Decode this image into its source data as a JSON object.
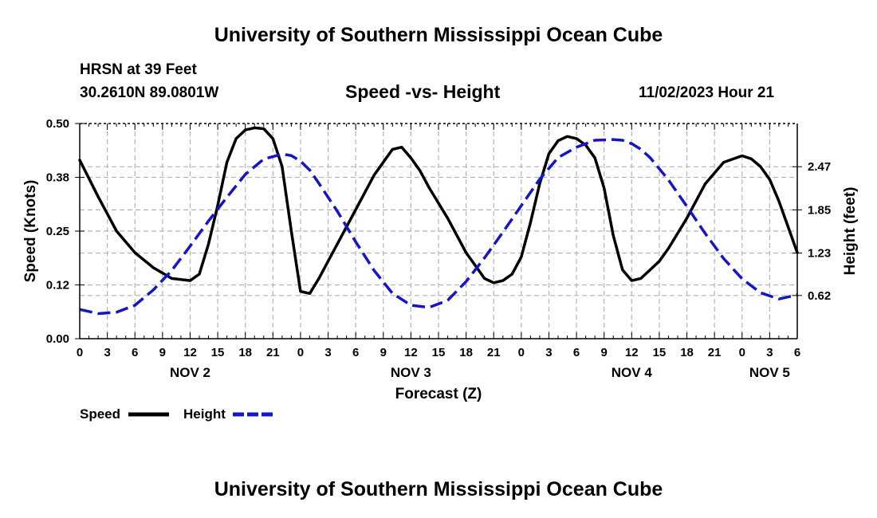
{
  "header": {
    "title": "University of Southern Mississippi Ocean Cube",
    "station": "HRSN at 39 Feet",
    "coords": "30.2610N  89.0801W",
    "subtitle": "Speed -vs- Height",
    "datetime": "11/02/2023 Hour 21"
  },
  "footer": {
    "title": "University of Southern Mississippi Ocean Cube"
  },
  "colors": {
    "speed": "#000000",
    "height": "#1414c8",
    "grid": "#b4b4b4"
  },
  "chart_data": {
    "type": "line",
    "xlabel": "Forecast (Z)",
    "ylabel_left": "Speed (Knots)",
    "ylabel_right": "Height (feet)",
    "x_range_hours": [
      0,
      78
    ],
    "x_major_step_hours": 3,
    "x_tick_labels": [
      "0",
      "3",
      "6",
      "9",
      "12",
      "15",
      "18",
      "21",
      "0",
      "3",
      "6",
      "9",
      "12",
      "15",
      "18",
      "21",
      "0",
      "3",
      "6",
      "9",
      "12",
      "15",
      "18",
      "21",
      "0",
      "3",
      "6"
    ],
    "date_labels": [
      {
        "label": "NOV 2",
        "hour": 12
      },
      {
        "label": "NOV 3",
        "hour": 36
      },
      {
        "label": "NOV 4",
        "hour": 60
      },
      {
        "label": "NOV 5",
        "hour": 75
      }
    ],
    "y_left": {
      "min": 0.0,
      "max": 0.5,
      "ticks": [
        0.0,
        0.125,
        0.25,
        0.375,
        0.5
      ],
      "tick_labels": [
        "0.00",
        "0.12",
        "0.25",
        "0.38",
        "0.50"
      ]
    },
    "y_right": {
      "min": 0.0,
      "max": 3.09,
      "ticks": [
        0.62,
        1.23,
        1.85,
        2.47
      ],
      "tick_labels": [
        "0.62",
        "1.23",
        "1.85",
        "2.47"
      ]
    },
    "series": [
      {
        "name": "Speed",
        "axis": "left",
        "style": "solid",
        "x": [
          0,
          2,
          4,
          6,
          8,
          10,
          12,
          13,
          14,
          15,
          16,
          17,
          18,
          19,
          20,
          21,
          22,
          23,
          24,
          25,
          26,
          27,
          28,
          30,
          32,
          34,
          35,
          36,
          37,
          38,
          40,
          42,
          44,
          45,
          46,
          47,
          48,
          49,
          50,
          51,
          52,
          53,
          54,
          55,
          56,
          57,
          58,
          59,
          60,
          61,
          62,
          63,
          64,
          66,
          68,
          70,
          72,
          73,
          74,
          75,
          76,
          77,
          78
        ],
        "y": [
          0.415,
          0.33,
          0.25,
          0.2,
          0.165,
          0.14,
          0.135,
          0.15,
          0.22,
          0.31,
          0.41,
          0.465,
          0.485,
          0.49,
          0.488,
          0.465,
          0.4,
          0.25,
          0.11,
          0.105,
          0.14,
          0.18,
          0.22,
          0.3,
          0.38,
          0.44,
          0.445,
          0.42,
          0.39,
          0.35,
          0.28,
          0.2,
          0.14,
          0.13,
          0.135,
          0.15,
          0.19,
          0.27,
          0.36,
          0.43,
          0.46,
          0.47,
          0.465,
          0.45,
          0.42,
          0.35,
          0.24,
          0.16,
          0.135,
          0.14,
          0.16,
          0.18,
          0.21,
          0.28,
          0.36,
          0.41,
          0.425,
          0.418,
          0.4,
          0.37,
          0.32,
          0.26,
          0.2
        ]
      },
      {
        "name": "Height",
        "axis": "right",
        "style": "dashed",
        "x": [
          0,
          2,
          4,
          6,
          8,
          10,
          12,
          14,
          16,
          18,
          20,
          22,
          23,
          24,
          25,
          26,
          28,
          30,
          32,
          34,
          36,
          38,
          40,
          42,
          44,
          46,
          48,
          50,
          52,
          54,
          56,
          58,
          59,
          60,
          61,
          62,
          64,
          66,
          68,
          70,
          72,
          74,
          76,
          78
        ],
        "y": [
          0.42,
          0.36,
          0.38,
          0.48,
          0.7,
          0.98,
          1.33,
          1.69,
          2.03,
          2.36,
          2.58,
          2.65,
          2.63,
          2.55,
          2.42,
          2.23,
          1.83,
          1.39,
          0.98,
          0.65,
          0.48,
          0.45,
          0.55,
          0.82,
          1.16,
          1.53,
          1.91,
          2.29,
          2.6,
          2.75,
          2.85,
          2.86,
          2.85,
          2.8,
          2.72,
          2.6,
          2.28,
          1.9,
          1.51,
          1.15,
          0.86,
          0.66,
          0.57,
          0.63
        ]
      }
    ],
    "legend": [
      {
        "label": "Speed",
        "style": "solid"
      },
      {
        "label": "Height",
        "style": "dashed"
      }
    ]
  }
}
